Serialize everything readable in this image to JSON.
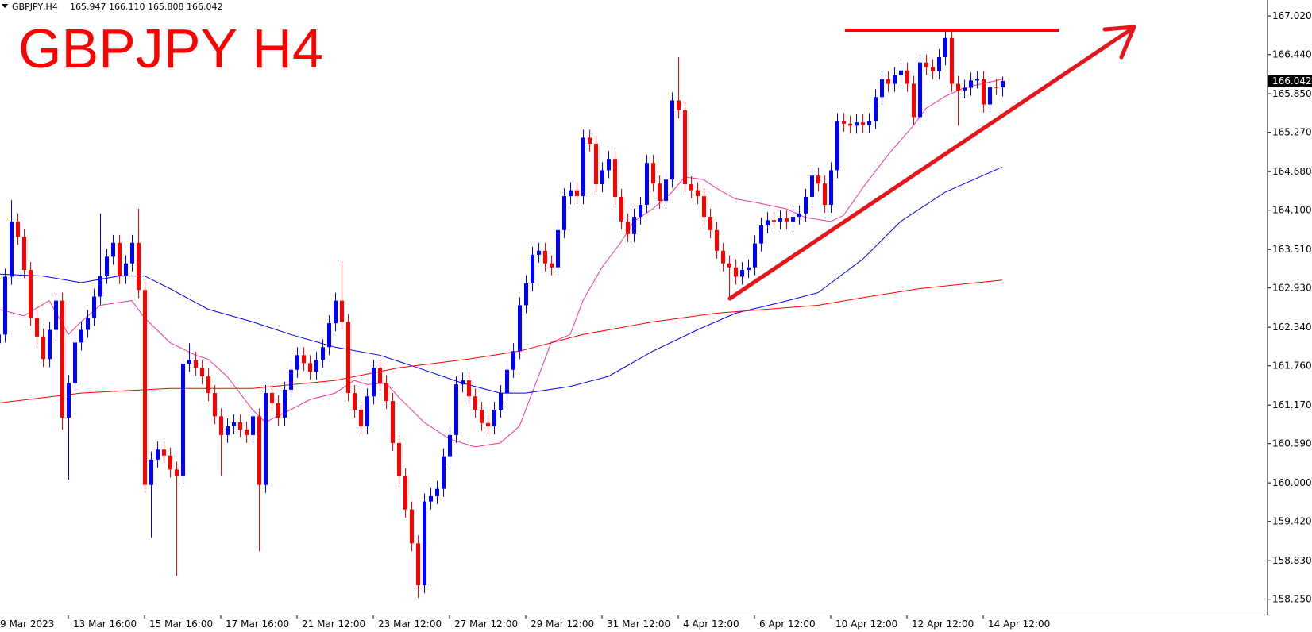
{
  "chart_data": {
    "type": "candlestick",
    "header": {
      "symbol": "GBPJPY,H4",
      "ohlc": "165.947 166.110 165.808 166.042"
    },
    "title": "GBPJPY H4",
    "up_color": "#0000ff",
    "down_color": "#ff0000",
    "ylim": [
      158.02,
      167.26
    ],
    "yticks": [
      {
        "value": 167.02,
        "label": "167.020"
      },
      {
        "value": 166.44,
        "label": "166.440"
      },
      {
        "value": 165.85,
        "label": "165.850"
      },
      {
        "value": 165.27,
        "label": "165.270"
      },
      {
        "value": 164.68,
        "label": "164.680"
      },
      {
        "value": 164.1,
        "label": "164.100"
      },
      {
        "value": 163.51,
        "label": "163.510"
      },
      {
        "value": 162.93,
        "label": "162.930"
      },
      {
        "value": 162.34,
        "label": "162.340"
      },
      {
        "value": 161.76,
        "label": "161.760"
      },
      {
        "value": 161.17,
        "label": "161.170"
      },
      {
        "value": 160.59,
        "label": "160.590"
      },
      {
        "value": 160,
        "label": "160.000"
      },
      {
        "value": 159.42,
        "label": "159.420"
      },
      {
        "value": 158.83,
        "label": "158.830"
      },
      {
        "value": 158.25,
        "label": "158.250"
      }
    ],
    "current_price": {
      "value": 166.042,
      "label": "166.042"
    },
    "categories": [
      "9 Mar 2023",
      null,
      null,
      null,
      null,
      null,
      null,
      null,
      null,
      null,
      null,
      null,
      "13 Mar 16:00",
      null,
      null,
      null,
      null,
      null,
      null,
      null,
      null,
      null,
      null,
      null,
      "15 Mar 16:00",
      null,
      null,
      null,
      null,
      null,
      null,
      null,
      null,
      null,
      null,
      null,
      "17 Mar 16:00",
      null,
      null,
      null,
      null,
      null,
      null,
      null,
      null,
      null,
      null,
      null,
      "21 Mar 12:00",
      null,
      null,
      null,
      null,
      null,
      null,
      null,
      null,
      null,
      null,
      null,
      "23 Mar 12:00",
      null,
      null,
      null,
      null,
      null,
      null,
      null,
      null,
      null,
      null,
      null,
      "27 Mar 12:00",
      null,
      null,
      null,
      null,
      null,
      null,
      null,
      null,
      null,
      null,
      null,
      "29 Mar 12:00",
      null,
      null,
      null,
      null,
      null,
      null,
      null,
      null,
      null,
      null,
      null,
      "31 Mar 12:00",
      null,
      null,
      null,
      null,
      null,
      null,
      null,
      null,
      null,
      null,
      null,
      "4 Apr 12:00",
      null,
      null,
      null,
      null,
      null,
      null,
      null,
      null,
      null,
      null,
      null,
      "6 Apr 12:00",
      null,
      null,
      null,
      null,
      null,
      null,
      null,
      null,
      null,
      null,
      null,
      "10 Apr 12:00",
      null,
      null,
      null,
      null,
      null,
      null,
      null,
      null,
      null,
      null,
      null,
      "12 Apr 12:00",
      null,
      null,
      null,
      null,
      null,
      null,
      null,
      null,
      null,
      null,
      null,
      "14 Apr 12:00",
      null,
      null,
      null
    ],
    "open": [
      162.3,
      162.1,
      162.23,
      163.1,
      163.93,
      163.7,
      163.2,
      162.48,
      162.2,
      161.86,
      162.3,
      162.74,
      160.98,
      161.5,
      162.11,
      162.3,
      162.48,
      162.8,
      163.11,
      163.4,
      163.61,
      163.11,
      163.3,
      163.61,
      162.9,
      159.97,
      160.35,
      160.5,
      160.41,
      160.2,
      160.1,
      161.79,
      161.85,
      161.73,
      161.6,
      161.35,
      161.0,
      160.72,
      160.85,
      160.91,
      160.8,
      160.72,
      161.0,
      159.97,
      161.35,
      161.2,
      160.98,
      161.4,
      161.7,
      161.92,
      161.8,
      161.67,
      161.85,
      162.04,
      162.4,
      162.74,
      162.42,
      161.35,
      161.1,
      160.85,
      161.3,
      161.73,
      161.5,
      161.23,
      160.6,
      160.1,
      159.6,
      159.09,
      158.46,
      159.72,
      159.8,
      159.91,
      160.4,
      160.72,
      161.48,
      161.54,
      161.3,
      161.1,
      160.9,
      160.85,
      161.1,
      161.35,
      161.7,
      161.98,
      162.67,
      163.0,
      163.43,
      163.49,
      163.3,
      163.24,
      163.8,
      164.31,
      164.4,
      164.31,
      165.19,
      165.1,
      164.49,
      164.7,
      164.87,
      164.3,
      163.93,
      163.74,
      164.0,
      164.18,
      164.81,
      164.5,
      164.24,
      164.56,
      165.75,
      165.6,
      164.49,
      164.4,
      164.31,
      164.0,
      163.8,
      163.49,
      163.3,
      163.24,
      163.1,
      163.2,
      163.24,
      163.6,
      163.87,
      163.95,
      163.93,
      163.98,
      163.93,
      164.0,
      164.05,
      164.3,
      164.62,
      164.5,
      164.18,
      164.7,
      165.44,
      165.4,
      165.37,
      165.42,
      165.38,
      165.44,
      165.8,
      166.07,
      166.0,
      166.13,
      166.2,
      166.0,
      165.5,
      166.32,
      166.25,
      166.19,
      166.4,
      166.69,
      166.0,
      165.9,
      165.94,
      166.05,
      166.07,
      165.69,
      165.95,
      165.947
    ],
    "high": [
      162.42,
      162.35,
      163.22,
      164.25,
      164.05,
      163.82,
      163.32,
      162.6,
      162.32,
      162.42,
      162.86,
      162.86,
      161.62,
      162.23,
      162.42,
      162.6,
      162.92,
      164.05,
      163.52,
      163.73,
      163.73,
      163.42,
      163.73,
      164.12,
      163.02,
      160.47,
      160.62,
      160.62,
      160.53,
      160.32,
      161.91,
      162.1,
      161.97,
      161.85,
      161.72,
      161.47,
      161.12,
      160.97,
      161.03,
      161.03,
      160.92,
      161.12,
      161.12,
      161.47,
      161.47,
      161.32,
      161.52,
      161.82,
      162.04,
      162.04,
      161.92,
      161.97,
      162.16,
      162.52,
      162.86,
      163.33,
      162.54,
      161.47,
      161.22,
      161.42,
      161.85,
      161.85,
      161.62,
      161.35,
      160.72,
      160.22,
      159.72,
      159.21,
      159.84,
      159.92,
      160.03,
      160.52,
      160.84,
      161.6,
      161.66,
      161.66,
      161.42,
      161.22,
      161.02,
      161.22,
      161.47,
      161.82,
      162.1,
      162.79,
      163.12,
      163.55,
      163.61,
      163.61,
      163.42,
      163.92,
      164.43,
      164.52,
      164.52,
      165.31,
      165.31,
      165.22,
      164.82,
      164.99,
      164.99,
      164.42,
      164.05,
      164.12,
      164.3,
      164.93,
      164.93,
      164.62,
      164.68,
      165.87,
      166.4,
      165.72,
      164.61,
      164.52,
      164.43,
      164.12,
      163.92,
      163.61,
      163.42,
      163.36,
      163.32,
      163.36,
      163.72,
      163.99,
      164.07,
      164.07,
      164.1,
      164.1,
      164.12,
      164.17,
      164.42,
      164.74,
      164.74,
      164.62,
      164.82,
      165.56,
      165.56,
      165.52,
      165.54,
      165.54,
      165.56,
      165.92,
      166.19,
      166.19,
      166.25,
      166.32,
      166.32,
      166.12,
      166.44,
      166.44,
      166.37,
      166.52,
      166.81,
      166.81,
      166.12,
      166.06,
      166.17,
      166.19,
      166.19,
      166.07,
      166.07,
      166.11
    ],
    "low": [
      161.98,
      161.98,
      162.11,
      162.98,
      163.58,
      163.08,
      162.36,
      162.08,
      161.74,
      161.74,
      162.18,
      160.8,
      160.05,
      161.38,
      161.99,
      162.18,
      162.36,
      162.68,
      162.99,
      163.28,
      162.99,
      162.99,
      163.18,
      162.78,
      159.85,
      159.18,
      160.23,
      160.29,
      160.08,
      158.6,
      159.98,
      161.67,
      161.61,
      161.48,
      161.23,
      160.88,
      160.1,
      160.6,
      160.73,
      160.68,
      160.6,
      160.6,
      158.97,
      159.85,
      161.08,
      160.86,
      160.86,
      161.28,
      161.58,
      161.68,
      161.55,
      161.55,
      161.73,
      161.92,
      162.28,
      162.3,
      161.23,
      160.98,
      160.73,
      160.73,
      161.18,
      161.38,
      161.11,
      160.48,
      159.98,
      159.48,
      158.97,
      158.27,
      158.34,
      159.6,
      159.68,
      159.79,
      160.28,
      160.6,
      161.36,
      161.18,
      160.98,
      160.78,
      160.73,
      160.73,
      160.98,
      161.23,
      161.58,
      161.86,
      162.55,
      162.88,
      163.31,
      163.18,
      163.12,
      163.12,
      163.68,
      164.19,
      164.19,
      164.19,
      164.98,
      164.37,
      164.37,
      164.58,
      164.18,
      163.81,
      163.62,
      163.62,
      163.88,
      164.06,
      164.38,
      164.12,
      164.12,
      164.44,
      165.48,
      164.37,
      164.28,
      164.19,
      163.88,
      163.68,
      163.37,
      163.18,
      162.8,
      162.98,
      162.98,
      163.08,
      163.12,
      163.48,
      163.75,
      163.81,
      163.81,
      163.81,
      163.81,
      163.88,
      163.93,
      164.18,
      164.38,
      164.06,
      164.06,
      164.58,
      165.28,
      165.25,
      165.25,
      165.26,
      165.26,
      165.32,
      165.68,
      165.88,
      165.88,
      166.01,
      165.88,
      165.38,
      165.38,
      166.13,
      166.07,
      166.07,
      166.28,
      165.88,
      165.37,
      165.78,
      165.82,
      165.93,
      165.57,
      165.57,
      165.83,
      165.808
    ],
    "close": [
      162.1,
      162.23,
      163.1,
      163.93,
      163.7,
      163.2,
      162.48,
      162.2,
      161.86,
      162.3,
      162.74,
      160.98,
      161.5,
      162.11,
      162.3,
      162.48,
      162.8,
      163.11,
      163.4,
      163.61,
      163.11,
      163.3,
      163.61,
      162.9,
      159.97,
      160.35,
      160.5,
      160.41,
      160.2,
      160.1,
      161.79,
      161.85,
      161.73,
      161.6,
      161.35,
      161.0,
      160.72,
      160.85,
      160.91,
      160.8,
      160.72,
      161.0,
      159.97,
      161.35,
      161.2,
      160.98,
      161.4,
      161.7,
      161.92,
      161.8,
      161.67,
      161.85,
      162.04,
      162.4,
      162.74,
      162.42,
      161.35,
      161.1,
      160.85,
      161.3,
      161.73,
      161.5,
      161.23,
      160.6,
      160.1,
      159.6,
      159.09,
      158.46,
      159.72,
      159.8,
      159.91,
      160.4,
      160.72,
      161.48,
      161.54,
      161.3,
      161.1,
      160.9,
      160.85,
      161.1,
      161.35,
      161.7,
      161.98,
      162.67,
      163.0,
      163.43,
      163.49,
      163.3,
      163.24,
      163.8,
      164.31,
      164.4,
      164.31,
      165.19,
      165.1,
      164.49,
      164.7,
      164.87,
      164.3,
      163.93,
      163.74,
      164.0,
      164.18,
      164.81,
      164.5,
      164.24,
      164.56,
      165.75,
      165.6,
      164.49,
      164.4,
      164.31,
      164.0,
      163.8,
      163.49,
      163.3,
      163.24,
      163.1,
      163.2,
      163.24,
      163.6,
      163.87,
      163.95,
      163.93,
      163.98,
      163.93,
      164.0,
      164.05,
      164.3,
      164.62,
      164.5,
      164.18,
      164.7,
      165.44,
      165.4,
      165.37,
      165.42,
      165.38,
      165.44,
      165.8,
      166.07,
      166.0,
      166.13,
      166.2,
      166.0,
      165.5,
      166.32,
      166.25,
      166.19,
      166.4,
      166.69,
      166.0,
      165.9,
      165.94,
      166.05,
      166.07,
      165.69,
      165.95,
      165.947,
      166.042
    ],
    "series": [
      {
        "color": "#ff3399",
        "x": [
          1,
          5,
          9,
          12,
          14,
          17,
          22,
          24,
          28,
          32,
          34,
          37,
          41,
          43,
          47,
          50,
          54,
          57,
          59,
          62,
          64,
          68,
          72,
          76,
          80,
          83,
          86,
          88,
          91,
          93,
          96,
          99,
          101,
          104,
          107,
          109,
          112,
          114,
          117,
          120,
          125,
          128,
          132,
          134,
          137,
          141,
          145,
          147,
          150,
          153,
          159
        ],
        "values": [
          162.61,
          162.51,
          162.74,
          162.23,
          162.42,
          162.67,
          162.74,
          162.48,
          162.11,
          161.92,
          161.86,
          161.6,
          161.1,
          160.91,
          161.1,
          161.25,
          161.35,
          161.54,
          161.48,
          161.5,
          161.29,
          160.91,
          160.66,
          160.54,
          160.6,
          160.85,
          161.6,
          162.11,
          162.23,
          162.74,
          163.24,
          163.62,
          163.93,
          164.12,
          164.37,
          164.6,
          164.56,
          164.43,
          164.27,
          164.22,
          164.12,
          163.99,
          163.93,
          164.02,
          164.43,
          164.93,
          165.37,
          165.63,
          165.81,
          165.94,
          166.07
        ]
      },
      {
        "color": "#0000ff",
        "x": [
          1,
          8,
          14,
          20,
          24,
          28,
          34,
          41,
          47,
          54,
          61,
          67,
          74,
          80,
          84,
          91,
          97,
          104,
          111,
          117,
          124,
          130,
          137,
          143,
          150,
          159
        ],
        "values": [
          163.14,
          163.11,
          163.01,
          163.11,
          163.11,
          162.92,
          162.61,
          162.42,
          162.23,
          162.04,
          161.92,
          161.73,
          161.5,
          161.35,
          161.35,
          161.45,
          161.6,
          161.98,
          162.3,
          162.55,
          162.71,
          162.86,
          163.36,
          163.93,
          164.37,
          164.75
        ]
      },
      {
        "color": "#ff0000",
        "x": [
          1,
          14,
          28,
          41,
          54,
          64,
          75,
          83,
          93,
          104,
          114,
          122,
          130,
          138,
          146,
          159
        ],
        "values": [
          161.2,
          161.35,
          161.42,
          161.42,
          161.54,
          161.73,
          161.86,
          161.98,
          162.23,
          162.42,
          162.55,
          162.61,
          162.67,
          162.8,
          162.92,
          163.05
        ]
      }
    ]
  }
}
